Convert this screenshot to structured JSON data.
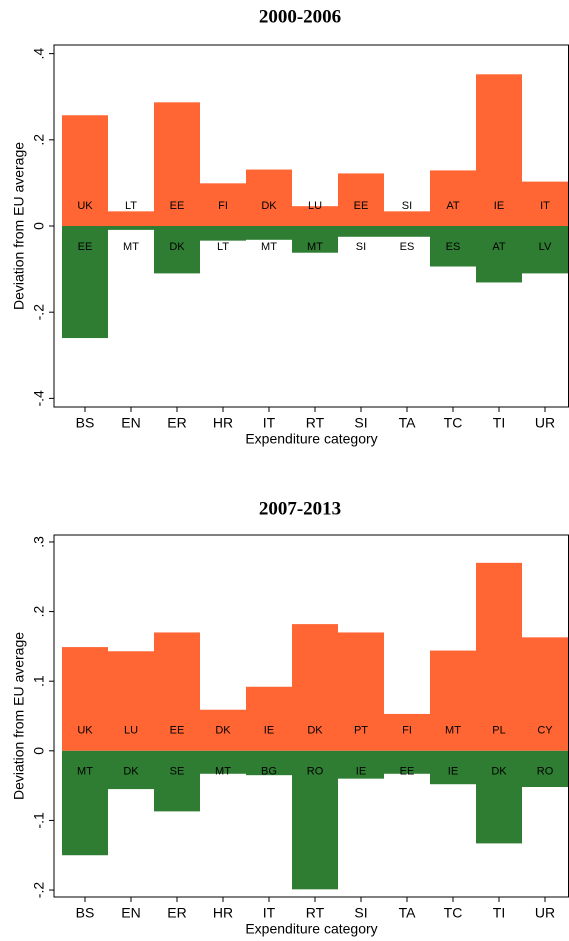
{
  "chart_data": [
    {
      "type": "bar",
      "title": "2000-2006",
      "x_label": "Expenditure category",
      "y_label": "Deviation from EU average",
      "categories": [
        "BS",
        "EN",
        "ER",
        "HR",
        "IT",
        "RT",
        "SI",
        "TA",
        "TC",
        "TI",
        "UR"
      ],
      "series": [
        {
          "color": "#ff6633",
          "values": [
            0.257,
            0.034,
            0.287,
            0.099,
            0.131,
            0.046,
            0.122,
            0.034,
            0.129,
            0.352,
            0.103
          ],
          "labels": [
            "UK",
            "LT",
            "EE",
            "FI",
            "DK",
            "LU",
            "EE",
            "SI",
            "AT",
            "IE",
            "IT"
          ]
        },
        {
          "color": "#2e7d32",
          "values": [
            -0.26,
            -0.009,
            -0.11,
            -0.034,
            -0.032,
            -0.062,
            -0.025,
            -0.025,
            -0.094,
            -0.131,
            -0.11
          ],
          "labels": [
            "EE",
            "MT",
            "DK",
            "LT",
            "MT",
            "MT",
            "SI",
            "ES",
            "ES",
            "AT",
            "LV"
          ]
        }
      ],
      "ylim": [
        -0.42,
        0.42
      ],
      "yticks": [
        {
          "value": -0.4,
          "label": "-.4"
        },
        {
          "value": -0.2,
          "label": "-.2"
        },
        0,
        {
          "value": 0.2,
          "label": ".2"
        },
        {
          "value": 0.4,
          "label": ".4"
        }
      ]
    },
    {
      "type": "bar",
      "title": "2007-2013",
      "x_label": "Expenditure category",
      "y_label": "Deviation from EU average",
      "categories": [
        "BS",
        "EN",
        "ER",
        "HR",
        "IT",
        "RT",
        "SI",
        "TA",
        "TC",
        "TI",
        "UR"
      ],
      "series": [
        {
          "color": "#ff6633",
          "values": [
            0.149,
            0.143,
            0.17,
            0.059,
            0.092,
            0.182,
            0.17,
            0.053,
            0.144,
            0.27,
            0.163
          ],
          "labels": [
            "UK",
            "LU",
            "EE",
            "DK",
            "IE",
            "DK",
            "PT",
            "FI",
            "MT",
            "PL",
            "CY"
          ]
        },
        {
          "color": "#2e7d32",
          "values": [
            -0.15,
            -0.055,
            -0.087,
            -0.033,
            -0.035,
            -0.199,
            -0.04,
            -0.033,
            -0.048,
            -0.133,
            -0.052
          ],
          "labels": [
            "MT",
            "DK",
            "SE",
            "MT",
            "BG",
            "RO",
            "IE",
            "EE",
            "IE",
            "DK",
            "RO"
          ]
        }
      ],
      "ylim": [
        -0.21,
        0.31
      ],
      "yticks": [
        {
          "value": -0.2,
          "label": "-.2"
        },
        {
          "value": -0.1,
          "label": "-.1"
        },
        0,
        {
          "value": 0.1,
          "label": ".1"
        },
        {
          "value": 0.2,
          "label": ".2"
        },
        {
          "value": 0.3,
          "label": ".3"
        }
      ]
    }
  ]
}
